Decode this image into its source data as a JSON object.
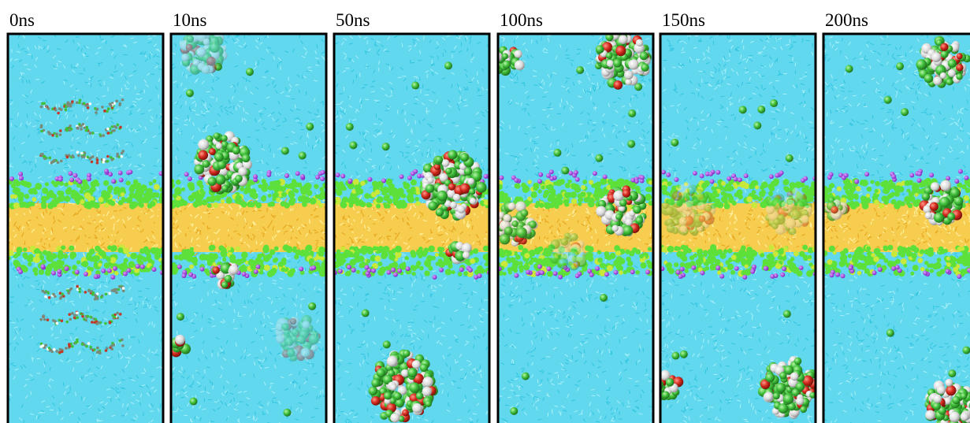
{
  "panels": [
    {
      "label": "0ns"
    },
    {
      "label": "10ns"
    },
    {
      "label": "50ns"
    },
    {
      "label": "100ns"
    },
    {
      "label": "150ns"
    },
    {
      "label": "200ns"
    }
  ]
}
